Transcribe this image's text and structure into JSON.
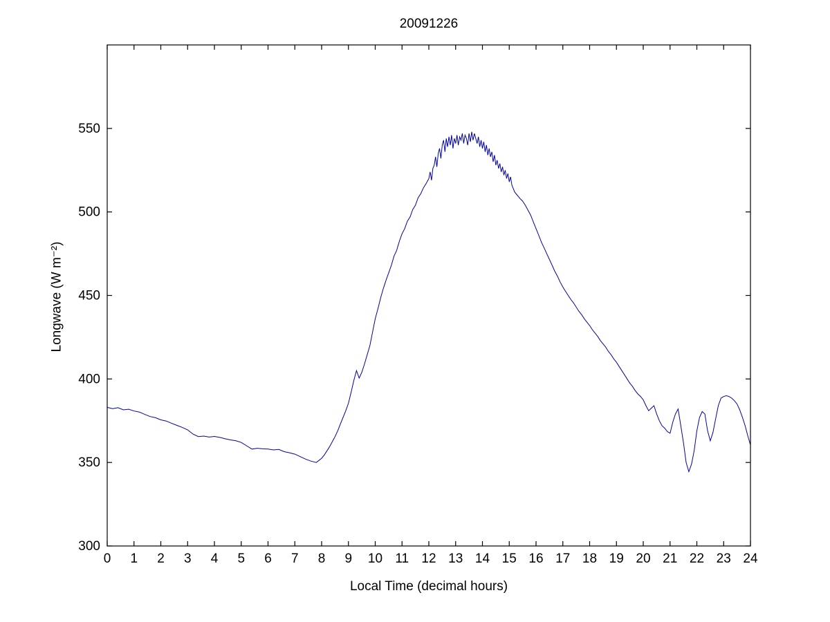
{
  "figure": {
    "background": "#ffffff"
  },
  "chart_data": {
    "type": "line",
    "title": "20091226",
    "xlabel": "Local Time (decimal hours)",
    "ylabel": "Longwave (W m⁻²)",
    "xlim": [
      0,
      24
    ],
    "ylim": [
      300,
      600
    ],
    "xticks": [
      0,
      1,
      2,
      3,
      4,
      5,
      6,
      7,
      8,
      9,
      10,
      11,
      12,
      13,
      14,
      15,
      16,
      17,
      18,
      19,
      20,
      21,
      22,
      23,
      24
    ],
    "yticks": [
      300,
      350,
      400,
      450,
      500,
      550
    ],
    "grid": false,
    "legend": "none",
    "line_color": "#0000A0",
    "axis_color": "#000000",
    "points": [
      [
        0.0,
        383.0
      ],
      [
        0.2,
        382.2
      ],
      [
        0.4,
        382.8
      ],
      [
        0.6,
        381.5
      ],
      [
        0.8,
        381.9
      ],
      [
        1.0,
        380.8
      ],
      [
        1.2,
        380.2
      ],
      [
        1.4,
        378.8
      ],
      [
        1.6,
        377.5
      ],
      [
        1.8,
        376.8
      ],
      [
        2.0,
        375.5
      ],
      [
        2.2,
        374.8
      ],
      [
        2.4,
        373.5
      ],
      [
        2.6,
        372.2
      ],
      [
        2.8,
        371.0
      ],
      [
        3.0,
        369.5
      ],
      [
        3.2,
        367.0
      ],
      [
        3.4,
        365.5
      ],
      [
        3.6,
        365.8
      ],
      [
        3.8,
        365.2
      ],
      [
        4.0,
        365.6
      ],
      [
        4.2,
        365.0
      ],
      [
        4.4,
        364.2
      ],
      [
        4.6,
        363.5
      ],
      [
        4.8,
        363.0
      ],
      [
        5.0,
        362.0
      ],
      [
        5.2,
        360.0
      ],
      [
        5.4,
        358.0
      ],
      [
        5.6,
        358.5
      ],
      [
        5.8,
        358.2
      ],
      [
        6.0,
        358.0
      ],
      [
        6.2,
        357.5
      ],
      [
        6.4,
        357.8
      ],
      [
        6.6,
        356.5
      ],
      [
        6.8,
        355.8
      ],
      [
        7.0,
        355.0
      ],
      [
        7.2,
        353.5
      ],
      [
        7.4,
        352.0
      ],
      [
        7.6,
        350.8
      ],
      [
        7.8,
        350.0
      ],
      [
        8.0,
        352.5
      ],
      [
        8.1,
        354.5
      ],
      [
        8.2,
        357.0
      ],
      [
        8.3,
        359.5
      ],
      [
        8.4,
        362.5
      ],
      [
        8.5,
        365.5
      ],
      [
        8.6,
        369.0
      ],
      [
        8.7,
        373.0
      ],
      [
        8.8,
        377.0
      ],
      [
        8.9,
        381.0
      ],
      [
        9.0,
        385.5
      ],
      [
        9.1,
        392.0
      ],
      [
        9.2,
        399.0
      ],
      [
        9.3,
        405.0
      ],
      [
        9.4,
        400.5
      ],
      [
        9.5,
        404.0
      ],
      [
        9.6,
        409.0
      ],
      [
        9.7,
        414.5
      ],
      [
        9.8,
        420.0
      ],
      [
        9.9,
        428.0
      ],
      [
        10.0,
        436.0
      ],
      [
        10.1,
        442.0
      ],
      [
        10.2,
        448.5
      ],
      [
        10.3,
        454.0
      ],
      [
        10.4,
        459.0
      ],
      [
        10.5,
        463.5
      ],
      [
        10.6,
        468.0
      ],
      [
        10.7,
        473.5
      ],
      [
        10.8,
        477.0
      ],
      [
        10.9,
        482.5
      ],
      [
        11.0,
        487.0
      ],
      [
        11.1,
        490.0
      ],
      [
        11.2,
        494.5
      ],
      [
        11.3,
        497.0
      ],
      [
        11.4,
        501.5
      ],
      [
        11.5,
        504.0
      ],
      [
        11.6,
        508.5
      ],
      [
        11.7,
        511.0
      ],
      [
        11.8,
        514.5
      ],
      [
        11.9,
        517.0
      ],
      [
        12.0,
        520.0
      ],
      [
        12.05,
        524.0
      ],
      [
        12.1,
        519.0
      ],
      [
        12.15,
        526.0
      ],
      [
        12.2,
        528.0
      ],
      [
        12.25,
        533.0
      ],
      [
        12.3,
        527.0
      ],
      [
        12.35,
        535.0
      ],
      [
        12.4,
        538.0
      ],
      [
        12.45,
        532.0
      ],
      [
        12.5,
        540.0
      ],
      [
        12.55,
        543.0
      ],
      [
        12.6,
        536.0
      ],
      [
        12.65,
        544.0
      ],
      [
        12.7,
        539.0
      ],
      [
        12.75,
        545.0
      ],
      [
        12.8,
        540.0
      ],
      [
        12.85,
        546.0
      ],
      [
        12.9,
        538.0
      ],
      [
        12.95,
        544.0
      ],
      [
        13.0,
        541.0
      ],
      [
        13.05,
        546.0
      ],
      [
        13.1,
        540.0
      ],
      [
        13.15,
        545.0
      ],
      [
        13.2,
        543.0
      ],
      [
        13.25,
        547.0
      ],
      [
        13.3,
        541.0
      ],
      [
        13.35,
        546.0
      ],
      [
        13.4,
        544.0
      ],
      [
        13.45,
        540.0
      ],
      [
        13.5,
        547.0
      ],
      [
        13.55,
        542.0
      ],
      [
        13.6,
        548.0
      ],
      [
        13.65,
        543.0
      ],
      [
        13.7,
        547.0
      ],
      [
        13.75,
        544.0
      ],
      [
        13.8,
        541.0
      ],
      [
        13.85,
        545.0
      ],
      [
        13.9,
        539.0
      ],
      [
        13.95,
        543.0
      ],
      [
        14.0,
        538.0
      ],
      [
        14.05,
        542.0
      ],
      [
        14.1,
        536.0
      ],
      [
        14.15,
        540.0
      ],
      [
        14.2,
        534.0
      ],
      [
        14.25,
        538.0
      ],
      [
        14.3,
        533.0
      ],
      [
        14.35,
        536.0
      ],
      [
        14.4,
        530.0
      ],
      [
        14.45,
        534.0
      ],
      [
        14.5,
        528.0
      ],
      [
        14.55,
        531.0
      ],
      [
        14.6,
        526.0
      ],
      [
        14.65,
        529.0
      ],
      [
        14.7,
        524.0
      ],
      [
        14.75,
        527.0
      ],
      [
        14.8,
        522.0
      ],
      [
        14.85,
        525.0
      ],
      [
        14.9,
        520.0
      ],
      [
        14.95,
        523.0
      ],
      [
        15.0,
        518.0
      ],
      [
        15.05,
        521.0
      ],
      [
        15.1,
        516.0
      ],
      [
        15.15,
        514.0
      ],
      [
        15.2,
        512.0
      ],
      [
        15.3,
        510.0
      ],
      [
        15.4,
        508.0
      ],
      [
        15.5,
        506.5
      ],
      [
        15.6,
        504.0
      ],
      [
        15.7,
        501.0
      ],
      [
        15.8,
        498.0
      ],
      [
        15.9,
        494.0
      ],
      [
        16.0,
        490.0
      ],
      [
        16.1,
        486.0
      ],
      [
        16.2,
        482.0
      ],
      [
        16.3,
        478.5
      ],
      [
        16.4,
        475.0
      ],
      [
        16.5,
        471.5
      ],
      [
        16.6,
        468.0
      ],
      [
        16.7,
        464.5
      ],
      [
        16.8,
        461.5
      ],
      [
        16.9,
        458.0
      ],
      [
        17.0,
        455.0
      ],
      [
        17.1,
        452.5
      ],
      [
        17.2,
        450.0
      ],
      [
        17.3,
        447.5
      ],
      [
        17.4,
        445.5
      ],
      [
        17.5,
        443.0
      ],
      [
        17.6,
        440.5
      ],
      [
        17.7,
        438.5
      ],
      [
        17.8,
        436.0
      ],
      [
        17.9,
        434.0
      ],
      [
        18.0,
        432.0
      ],
      [
        18.1,
        429.5
      ],
      [
        18.2,
        427.5
      ],
      [
        18.3,
        425.5
      ],
      [
        18.4,
        423.0
      ],
      [
        18.5,
        421.0
      ],
      [
        18.6,
        419.0
      ],
      [
        18.7,
        416.5
      ],
      [
        18.8,
        414.5
      ],
      [
        18.9,
        412.0
      ],
      [
        19.0,
        410.0
      ],
      [
        19.1,
        407.5
      ],
      [
        19.2,
        405.0
      ],
      [
        19.3,
        402.5
      ],
      [
        19.4,
        400.0
      ],
      [
        19.5,
        397.5
      ],
      [
        19.6,
        395.5
      ],
      [
        19.7,
        393.0
      ],
      [
        19.8,
        391.0
      ],
      [
        19.9,
        389.5
      ],
      [
        20.0,
        387.5
      ],
      [
        20.1,
        384.0
      ],
      [
        20.2,
        381.0
      ],
      [
        20.3,
        382.5
      ],
      [
        20.4,
        384.0
      ],
      [
        20.5,
        379.0
      ],
      [
        20.6,
        375.0
      ],
      [
        20.7,
        372.0
      ],
      [
        20.8,
        370.5
      ],
      [
        20.9,
        368.5
      ],
      [
        21.0,
        367.5
      ],
      [
        21.1,
        374.0
      ],
      [
        21.2,
        379.0
      ],
      [
        21.3,
        382.0
      ],
      [
        21.4,
        372.0
      ],
      [
        21.5,
        362.0
      ],
      [
        21.6,
        350.0
      ],
      [
        21.7,
        344.5
      ],
      [
        21.8,
        349.0
      ],
      [
        21.9,
        357.0
      ],
      [
        22.0,
        369.0
      ],
      [
        22.1,
        377.0
      ],
      [
        22.2,
        380.5
      ],
      [
        22.3,
        379.0
      ],
      [
        22.4,
        369.0
      ],
      [
        22.5,
        363.0
      ],
      [
        22.6,
        368.0
      ],
      [
        22.7,
        376.0
      ],
      [
        22.8,
        384.0
      ],
      [
        22.9,
        388.5
      ],
      [
        23.0,
        389.5
      ],
      [
        23.1,
        390.0
      ],
      [
        23.2,
        389.5
      ],
      [
        23.3,
        388.5
      ],
      [
        23.4,
        387.0
      ],
      [
        23.5,
        385.0
      ],
      [
        23.6,
        381.5
      ],
      [
        23.7,
        377.0
      ],
      [
        23.8,
        372.0
      ],
      [
        23.9,
        366.0
      ],
      [
        24.0,
        360.5
      ]
    ]
  }
}
